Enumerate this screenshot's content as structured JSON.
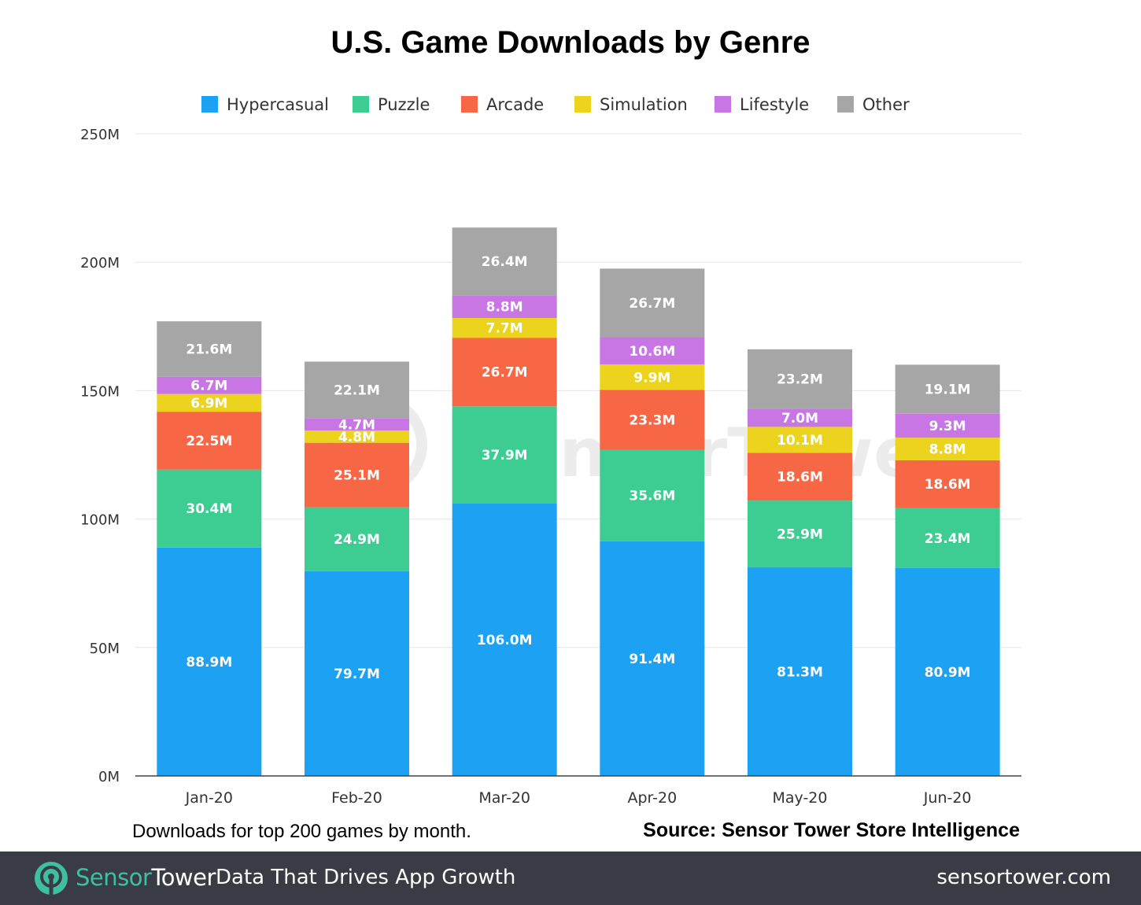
{
  "chart_data": {
    "type": "bar",
    "stacked": true,
    "title": "U.S. Game Downloads by Genre",
    "categories": [
      "Jan-20",
      "Feb-20",
      "Mar-20",
      "Apr-20",
      "May-20",
      "Jun-20"
    ],
    "series": [
      {
        "name": "Hypercasual",
        "color": "#1da1f2",
        "values": [
          88.9,
          79.7,
          106.0,
          91.4,
          81.3,
          80.9
        ],
        "labels": [
          "88.9M",
          "79.7M",
          "106.0M",
          "91.4M",
          "81.3M",
          "80.9M"
        ]
      },
      {
        "name": "Puzzle",
        "color": "#3dcc91",
        "values": [
          30.4,
          24.9,
          37.9,
          35.6,
          25.9,
          23.4
        ],
        "labels": [
          "30.4M",
          "24.9M",
          "37.9M",
          "35.6M",
          "25.9M",
          "23.4M"
        ]
      },
      {
        "name": "Arcade",
        "color": "#f76745",
        "values": [
          22.5,
          25.1,
          26.7,
          23.3,
          18.6,
          18.6
        ],
        "labels": [
          "22.5M",
          "25.1M",
          "26.7M",
          "23.3M",
          "18.6M",
          "18.6M"
        ]
      },
      {
        "name": "Simulation",
        "color": "#ecd31d",
        "values": [
          6.9,
          4.8,
          7.7,
          9.9,
          10.1,
          8.8
        ],
        "labels": [
          "6.9M",
          "4.8M",
          "7.7M",
          "9.9M",
          "10.1M",
          "8.8M"
        ]
      },
      {
        "name": "Lifestyle",
        "color": "#c776e4",
        "values": [
          6.7,
          4.7,
          8.8,
          10.6,
          7.0,
          9.3
        ],
        "labels": [
          "6.7M",
          "4.7M",
          "8.8M",
          "10.6M",
          "7.0M",
          "9.3M"
        ]
      },
      {
        "name": "Other",
        "color": "#a6a6a6",
        "values": [
          21.6,
          22.1,
          26.4,
          26.7,
          23.2,
          19.1
        ],
        "labels": [
          "21.6M",
          "22.1M",
          "26.4M",
          "26.7M",
          "23.2M",
          "19.1M"
        ]
      }
    ],
    "ylim": [
      0,
      250
    ],
    "yticks": [
      0,
      50,
      100,
      150,
      200,
      250
    ],
    "ytick_labels": [
      "0M",
      "50M",
      "100M",
      "150M",
      "200M",
      "250M"
    ],
    "xlabel": "",
    "ylabel": "",
    "grid": true,
    "legend": "top"
  },
  "watermark": "SensorTower",
  "note": "Downloads for top 200 games by month.",
  "source": "Source: Sensor Tower Store Intelligence",
  "footer": {
    "brand_part1": "Sensor",
    "brand_part2": "Tower",
    "tagline": "Data That Drives App Growth",
    "website": "sensortower.com",
    "logo_icon": "sensortower-logo-icon",
    "background": "#393c44"
  }
}
